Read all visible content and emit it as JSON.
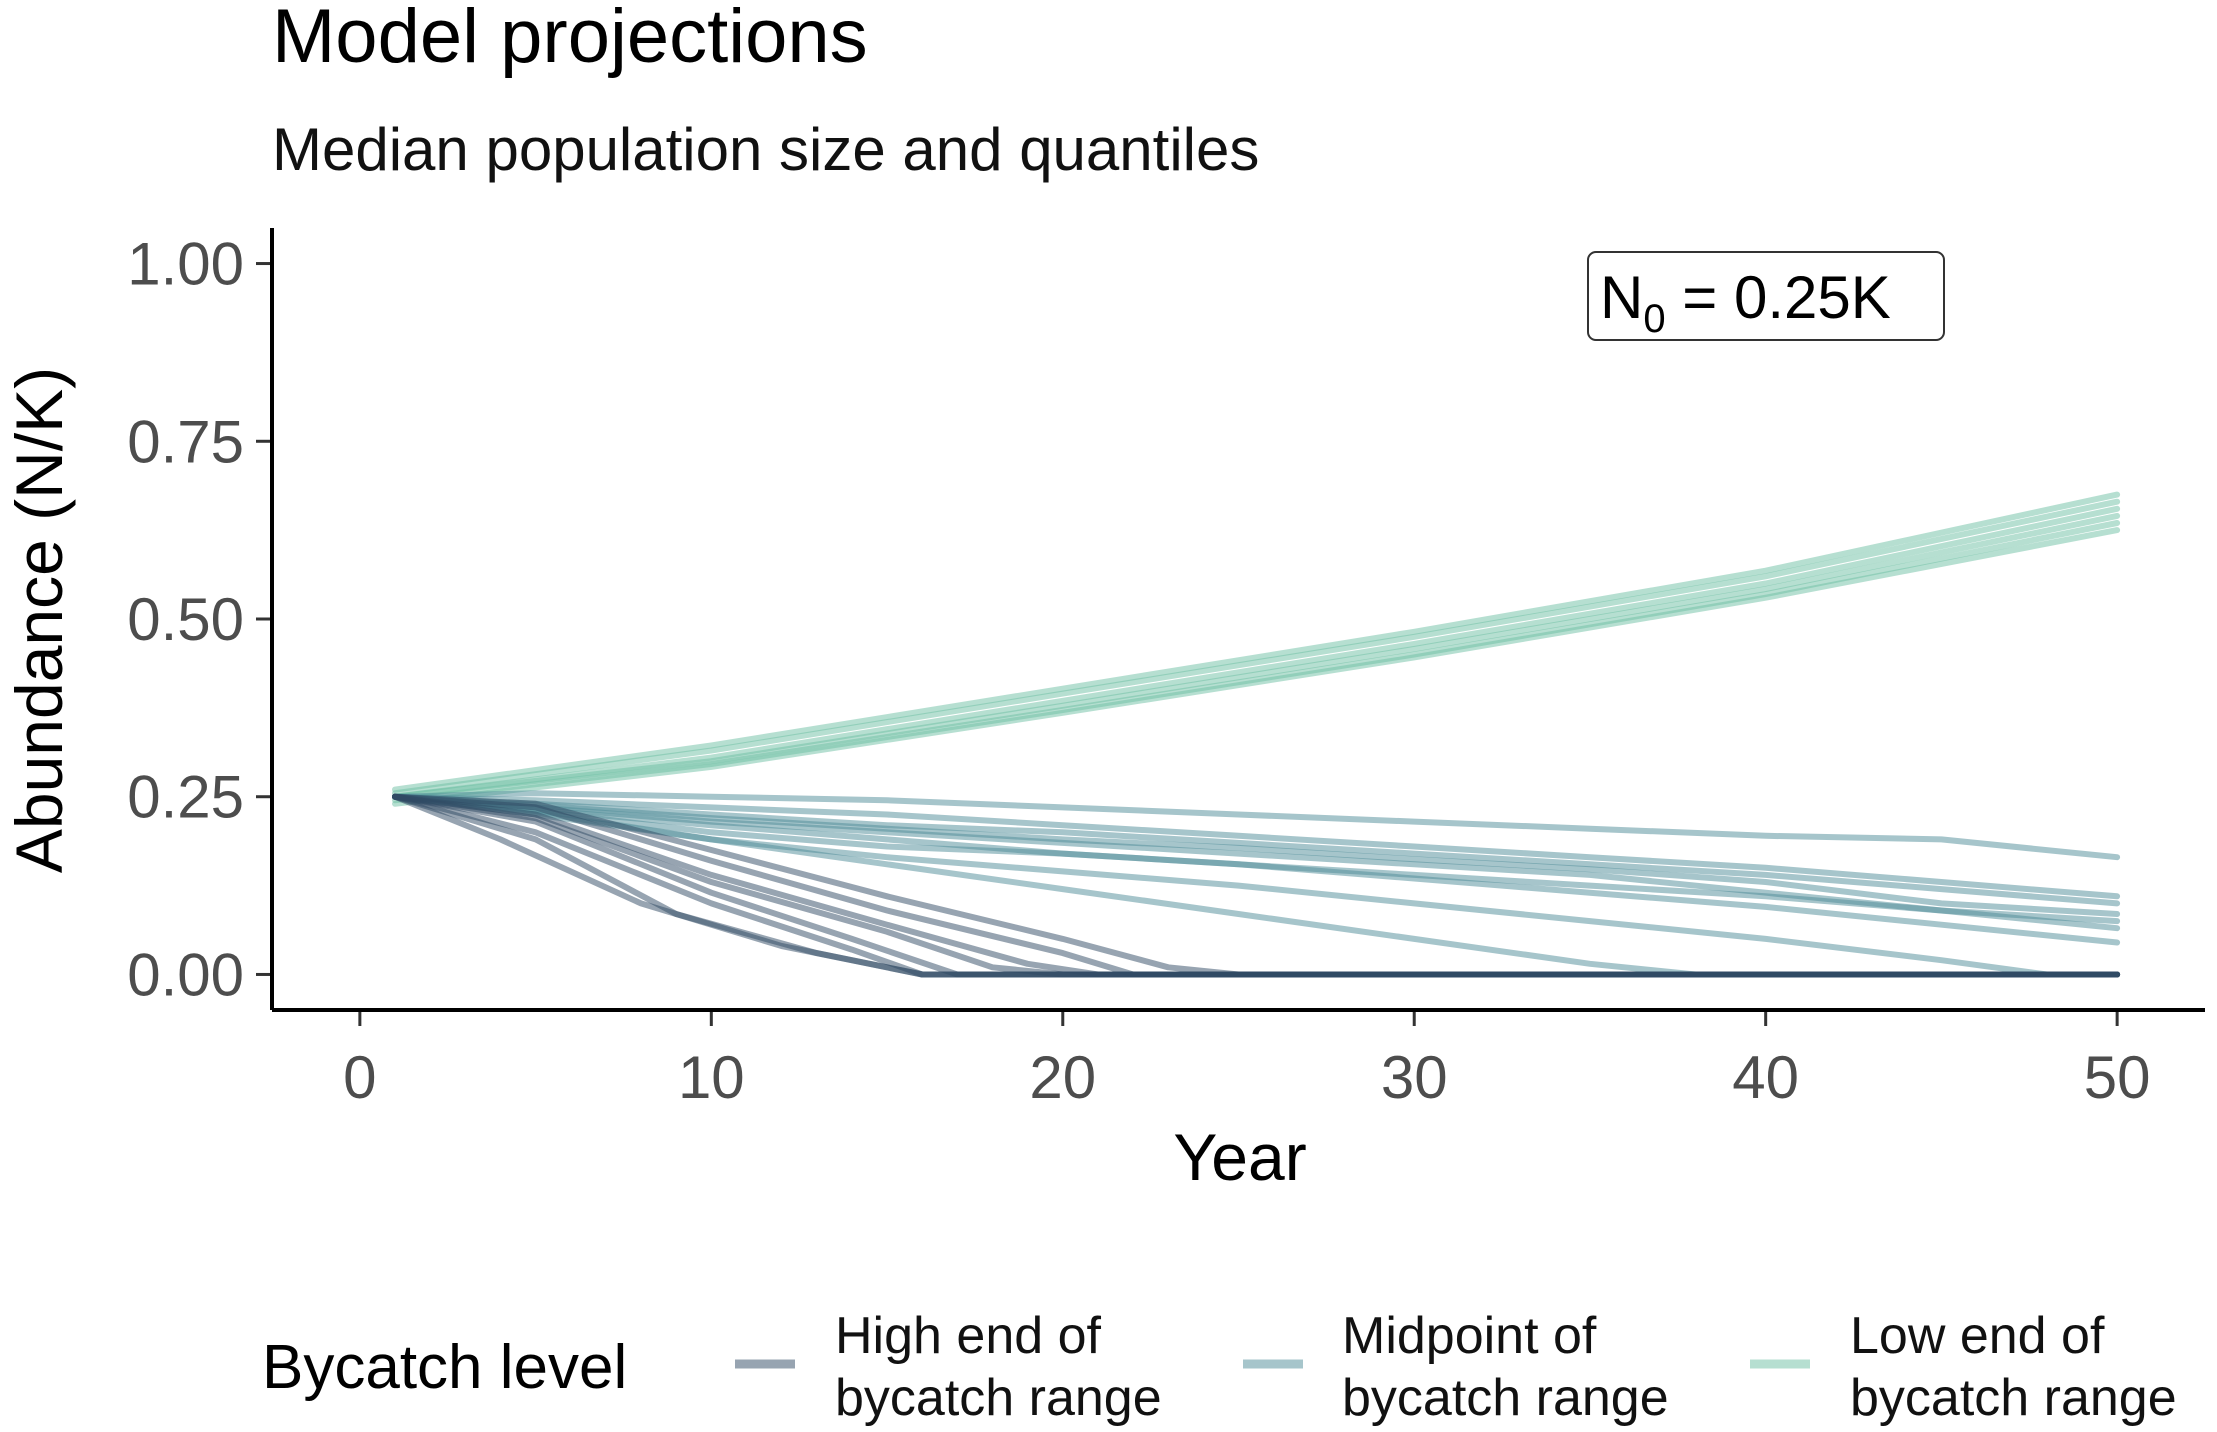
{
  "chart_data": {
    "type": "line",
    "title": "Model projections",
    "subtitle": "Median population size and quantiles",
    "xlabel": "Year",
    "ylabel": "Abundance (N/K)",
    "xlim": [
      -2.5,
      52.5
    ],
    "ylim": [
      -0.05,
      1.05
    ],
    "xticks": [
      0,
      10,
      20,
      30,
      40,
      50
    ],
    "xtick_labels": [
      "0",
      "10",
      "20",
      "30",
      "40",
      "50"
    ],
    "yticks": [
      0,
      0.25,
      0.5,
      0.75,
      1.0
    ],
    "ytick_labels": [
      "0.00",
      "0.25",
      "0.50",
      "0.75",
      "1.00"
    ],
    "annotation": {
      "base": "N",
      "subscript": "0",
      "rest": " = 0.25K",
      "position": "top-right"
    },
    "legend": {
      "title": "Bycatch level",
      "position": "bottom",
      "entries": [
        {
          "line1": "High end of",
          "line2": "bycatch range",
          "color": "#2f4a63"
        },
        {
          "line1": "Midpoint of",
          "line2": "bycatch range",
          "color": "#4e8b98"
        },
        {
          "line1": "Low end of",
          "line2": "bycatch range",
          "color": "#6dbfa4"
        }
      ]
    },
    "colors": {
      "high": "#2f4a63",
      "mid": "#4e8b98",
      "low": "#6dbfa4"
    },
    "series": [
      {
        "name": "Low end of bycatch range",
        "group": "low",
        "x": [
          1,
          10,
          20,
          30,
          40,
          50
        ],
        "y": [
          0.255,
          0.315,
          0.395,
          0.475,
          0.56,
          0.665
        ]
      },
      {
        "name": "Low end of bycatch range",
        "group": "low",
        "x": [
          1,
          10,
          20,
          30,
          40,
          50
        ],
        "y": [
          0.25,
          0.305,
          0.385,
          0.465,
          0.55,
          0.655
        ]
      },
      {
        "name": "Low end of bycatch range",
        "group": "low",
        "x": [
          1,
          10,
          20,
          30,
          40,
          50
        ],
        "y": [
          0.25,
          0.3,
          0.378,
          0.458,
          0.542,
          0.645
        ]
      },
      {
        "name": "Low end of bycatch range",
        "group": "low",
        "x": [
          1,
          10,
          20,
          30,
          40,
          50
        ],
        "y": [
          0.245,
          0.296,
          0.372,
          0.45,
          0.535,
          0.635
        ]
      },
      {
        "name": "Low end of bycatch range",
        "group": "low",
        "x": [
          1,
          10,
          20,
          30,
          40,
          50
        ],
        "y": [
          0.26,
          0.322,
          0.402,
          0.482,
          0.568,
          0.675
        ]
      },
      {
        "name": "Low end of bycatch range",
        "group": "low",
        "x": [
          1,
          10,
          20,
          30,
          40,
          50
        ],
        "y": [
          0.24,
          0.292,
          0.368,
          0.446,
          0.53,
          0.625
        ]
      },
      {
        "name": "Midpoint of bycatch range",
        "group": "mid",
        "x": [
          1,
          5,
          10,
          15,
          20,
          25,
          30,
          35,
          40,
          45,
          50
        ],
        "y": [
          0.25,
          0.255,
          0.25,
          0.245,
          0.235,
          0.225,
          0.215,
          0.205,
          0.195,
          0.19,
          0.165
        ]
      },
      {
        "name": "Midpoint of bycatch range",
        "group": "mid",
        "x": [
          1,
          5,
          10,
          15,
          20,
          25,
          30,
          35,
          40,
          45,
          50
        ],
        "y": [
          0.25,
          0.245,
          0.235,
          0.225,
          0.21,
          0.195,
          0.18,
          0.165,
          0.15,
          0.13,
          0.11
        ]
      },
      {
        "name": "Midpoint of bycatch range",
        "group": "mid",
        "x": [
          1,
          5,
          10,
          15,
          20,
          25,
          30,
          35,
          40,
          45,
          50
        ],
        "y": [
          0.25,
          0.24,
          0.225,
          0.21,
          0.2,
          0.185,
          0.17,
          0.155,
          0.14,
          0.12,
          0.1
        ]
      },
      {
        "name": "Midpoint of bycatch range",
        "group": "mid",
        "x": [
          1,
          5,
          10,
          15,
          20,
          25,
          30,
          35,
          40,
          45,
          50
        ],
        "y": [
          0.25,
          0.238,
          0.22,
          0.205,
          0.19,
          0.178,
          0.162,
          0.148,
          0.13,
          0.1,
          0.085
        ]
      },
      {
        "name": "Midpoint of bycatch range",
        "group": "mid",
        "x": [
          1,
          5,
          10,
          15,
          20,
          25,
          30,
          35,
          40,
          45,
          50
        ],
        "y": [
          0.25,
          0.232,
          0.21,
          0.19,
          0.17,
          0.155,
          0.14,
          0.125,
          0.11,
          0.09,
          0.075
        ]
      },
      {
        "name": "Midpoint of bycatch range",
        "group": "mid",
        "x": [
          1,
          5,
          10,
          15,
          20,
          25,
          30,
          35,
          40,
          45,
          50
        ],
        "y": [
          0.25,
          0.23,
          0.2,
          0.18,
          0.17,
          0.155,
          0.135,
          0.115,
          0.095,
          0.07,
          0.045
        ]
      },
      {
        "name": "Midpoint of bycatch range",
        "group": "mid",
        "x": [
          1,
          5,
          10,
          15,
          20,
          25,
          30,
          35,
          40,
          45,
          48,
          50
        ],
        "y": [
          0.25,
          0.228,
          0.19,
          0.165,
          0.145,
          0.125,
          0.1,
          0.075,
          0.05,
          0.02,
          0,
          0
        ]
      },
      {
        "name": "Midpoint of bycatch range",
        "group": "mid",
        "x": [
          1,
          5,
          10,
          15,
          20,
          25,
          30,
          35,
          38,
          50
        ],
        "y": [
          0.25,
          0.225,
          0.19,
          0.155,
          0.12,
          0.085,
          0.05,
          0.015,
          0,
          0
        ]
      },
      {
        "name": "Midpoint of bycatch range",
        "group": "mid",
        "x": [
          1,
          5,
          10,
          15,
          20,
          25,
          30,
          35,
          40,
          45,
          50
        ],
        "y": [
          0.25,
          0.235,
          0.215,
          0.2,
          0.185,
          0.17,
          0.155,
          0.14,
          0.115,
          0.09,
          0.065
        ]
      },
      {
        "name": "High end of bycatch range",
        "group": "high",
        "x": [
          1,
          5,
          10,
          15,
          20,
          23,
          25,
          50
        ],
        "y": [
          0.25,
          0.24,
          0.175,
          0.11,
          0.05,
          0.01,
          0,
          0
        ]
      },
      {
        "name": "High end of bycatch range",
        "group": "high",
        "x": [
          1,
          5,
          10,
          15,
          20,
          22,
          50
        ],
        "y": [
          0.25,
          0.235,
          0.16,
          0.09,
          0.03,
          0,
          0
        ]
      },
      {
        "name": "High end of bycatch range",
        "group": "high",
        "x": [
          1,
          5,
          10,
          15,
          19,
          21,
          50
        ],
        "y": [
          0.25,
          0.225,
          0.14,
          0.07,
          0.015,
          0,
          0
        ]
      },
      {
        "name": "High end of bycatch range",
        "group": "high",
        "x": [
          1,
          5,
          10,
          15,
          18,
          20,
          50
        ],
        "y": [
          0.25,
          0.22,
          0.13,
          0.06,
          0.01,
          0,
          0
        ]
      },
      {
        "name": "High end of bycatch range",
        "group": "high",
        "x": [
          1,
          5,
          10,
          14,
          17,
          50
        ],
        "y": [
          0.25,
          0.215,
          0.115,
          0.05,
          0,
          0
        ]
      },
      {
        "name": "High end of bycatch range",
        "group": "high",
        "x": [
          1,
          5,
          10,
          14,
          16,
          50
        ],
        "y": [
          0.25,
          0.2,
          0.1,
          0.035,
          0,
          0
        ]
      },
      {
        "name": "High end of bycatch range",
        "group": "high",
        "x": [
          1,
          5,
          9,
          13,
          16,
          50
        ],
        "y": [
          0.25,
          0.19,
          0.085,
          0.03,
          0,
          0
        ]
      },
      {
        "name": "High end of bycatch range",
        "group": "high",
        "x": [
          1,
          4,
          8,
          12,
          16,
          50
        ],
        "y": [
          0.25,
          0.19,
          0.1,
          0.04,
          0,
          0
        ]
      }
    ]
  }
}
